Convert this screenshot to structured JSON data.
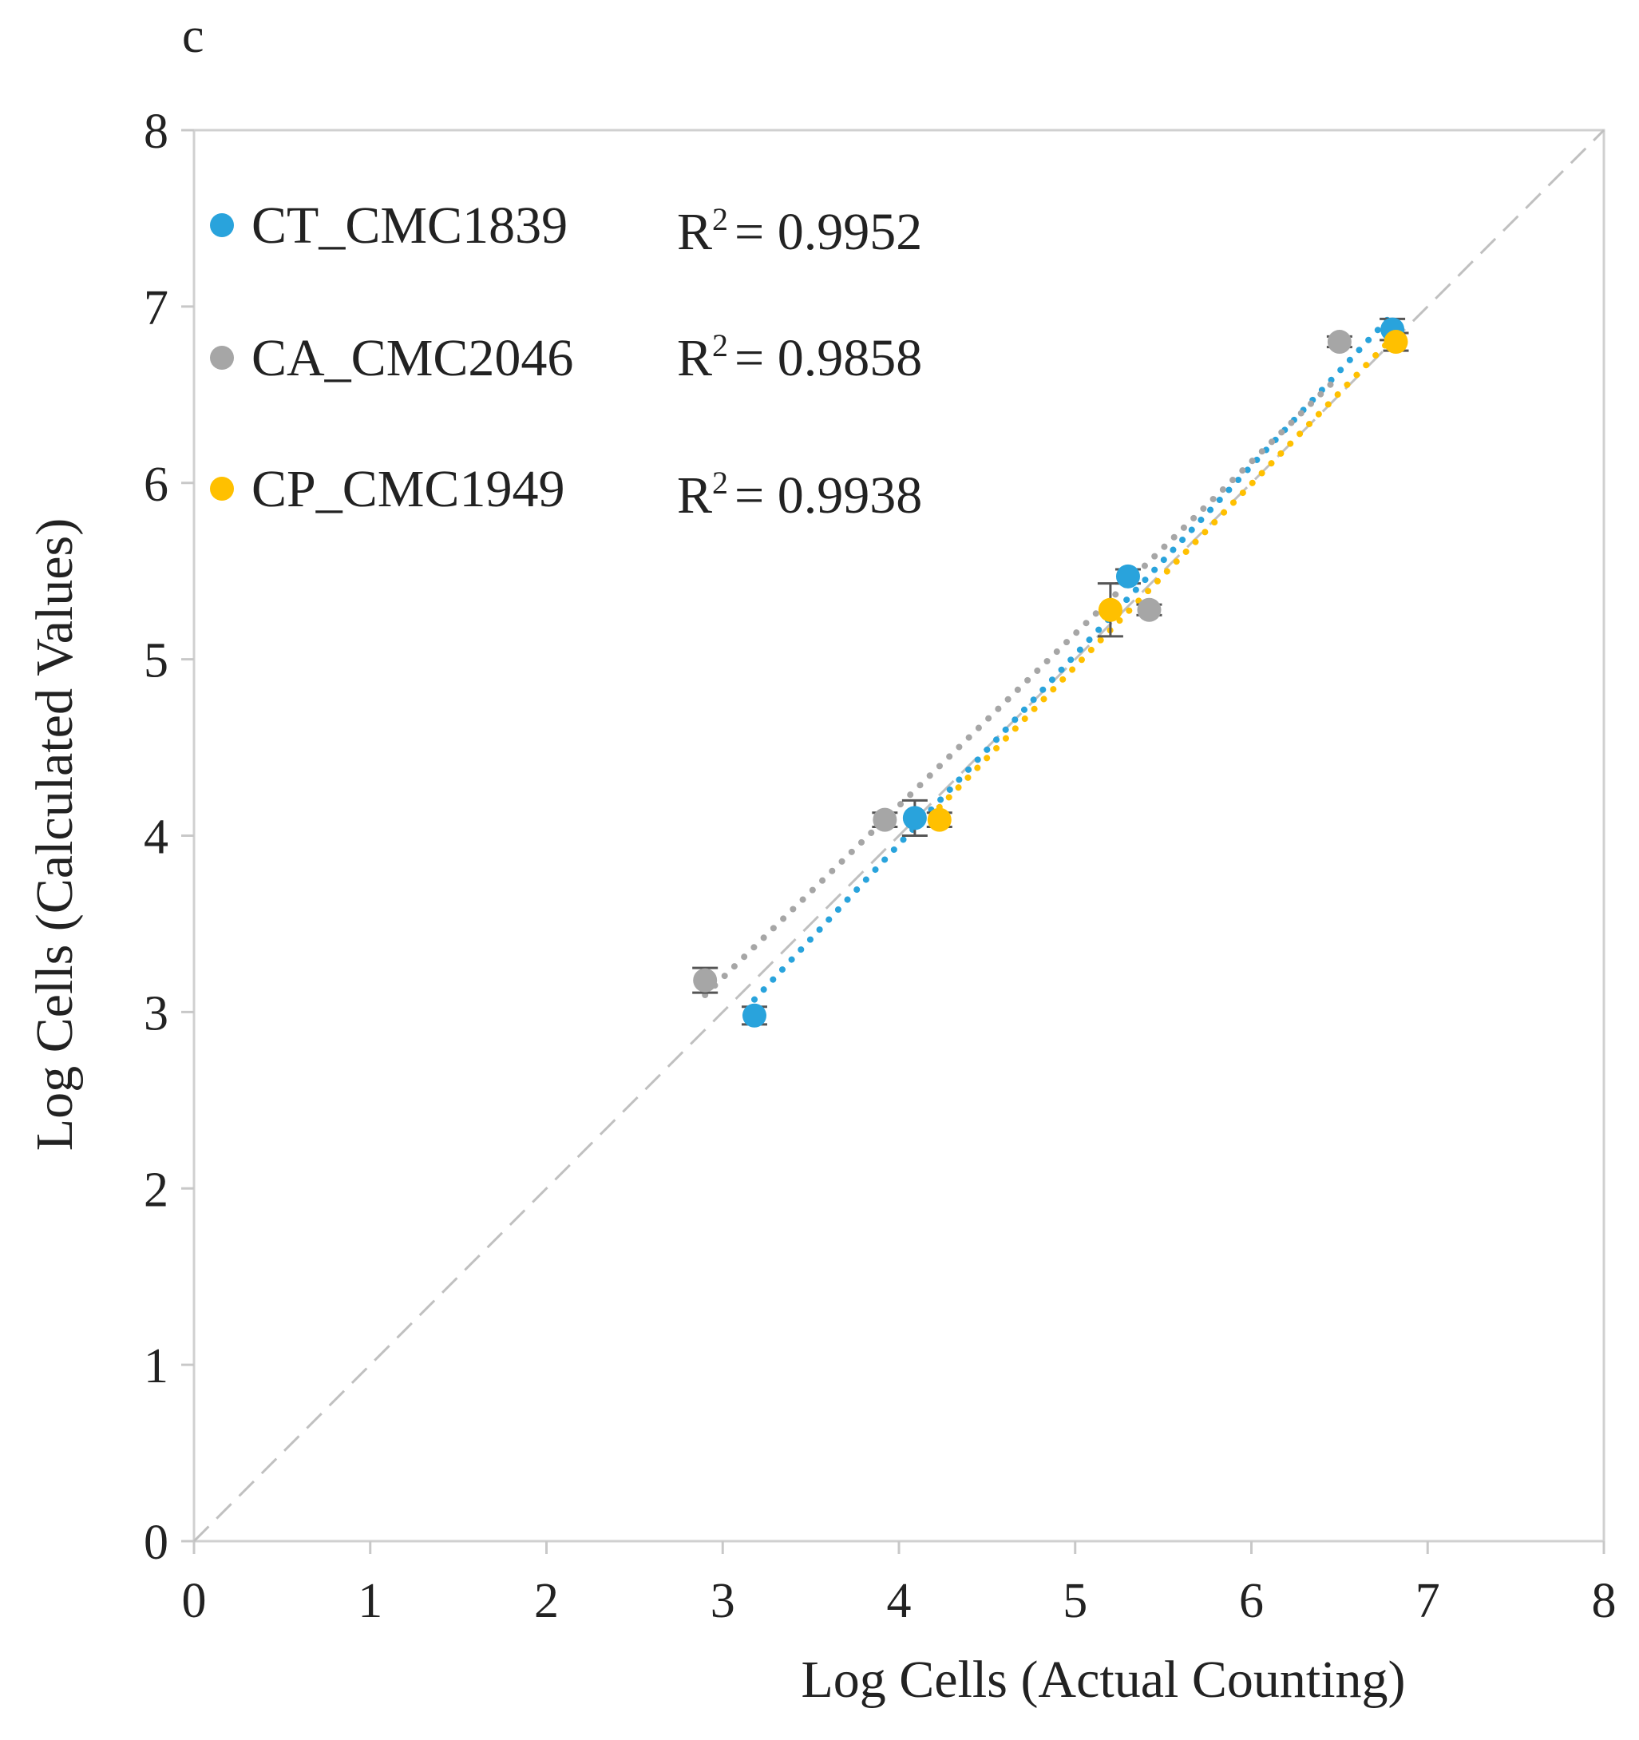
{
  "chart_data": {
    "type": "scatter",
    "panel_label": "c",
    "xlabel": "Log Cells (Actual Counting)",
    "ylabel": "Log Cells (Calculated Values)",
    "xlim": [
      0,
      8
    ],
    "ylim": [
      0,
      8
    ],
    "x_ticks": [
      "0",
      "1",
      "2",
      "3",
      "4",
      "5",
      "6",
      "7",
      "8"
    ],
    "y_ticks": [
      "0",
      "1",
      "2",
      "3",
      "4",
      "5",
      "6",
      "7",
      "8"
    ],
    "reference_line": {
      "type": "y=x",
      "style": "dashed",
      "color": "#c0c0c0"
    },
    "series": [
      {
        "name": "CT_CMC1839",
        "r2_text": "R² = 0.9952",
        "r2_base": "R",
        "r2_sup": "2",
        "r2_value": "= 0.9952",
        "color": "#29a3dc",
        "points": [
          {
            "x": 3.18,
            "y": 2.98,
            "err": 0.05
          },
          {
            "x": 4.09,
            "y": 4.1,
            "err": 0.1
          },
          {
            "x": 5.3,
            "y": 5.47,
            "err": 0.04
          },
          {
            "x": 6.8,
            "y": 6.87,
            "err": 0.06
          }
        ]
      },
      {
        "name": "CA_CMC2046",
        "r2_text": "R² = 0.9858",
        "r2_base": "R",
        "r2_sup": "2",
        "r2_value": "= 0.9858",
        "color": "#a6a6a6",
        "points": [
          {
            "x": 2.9,
            "y": 3.18,
            "err": 0.07
          },
          {
            "x": 3.92,
            "y": 4.09,
            "err": 0.04
          },
          {
            "x": 5.42,
            "y": 5.28,
            "err": 0.03
          },
          {
            "x": 6.5,
            "y": 6.8,
            "err": 0.03
          }
        ]
      },
      {
        "name": "CP_CMC1949",
        "r2_text": "R² = 0.9938",
        "r2_base": "R",
        "r2_sup": "2",
        "r2_value": "= 0.9938",
        "color": "#ffc000",
        "points": [
          {
            "x": 4.23,
            "y": 4.09,
            "err": 0.04
          },
          {
            "x": 5.2,
            "y": 5.28,
            "err": 0.15
          },
          {
            "x": 6.82,
            "y": 6.8,
            "err": 0.05
          }
        ]
      }
    ]
  }
}
